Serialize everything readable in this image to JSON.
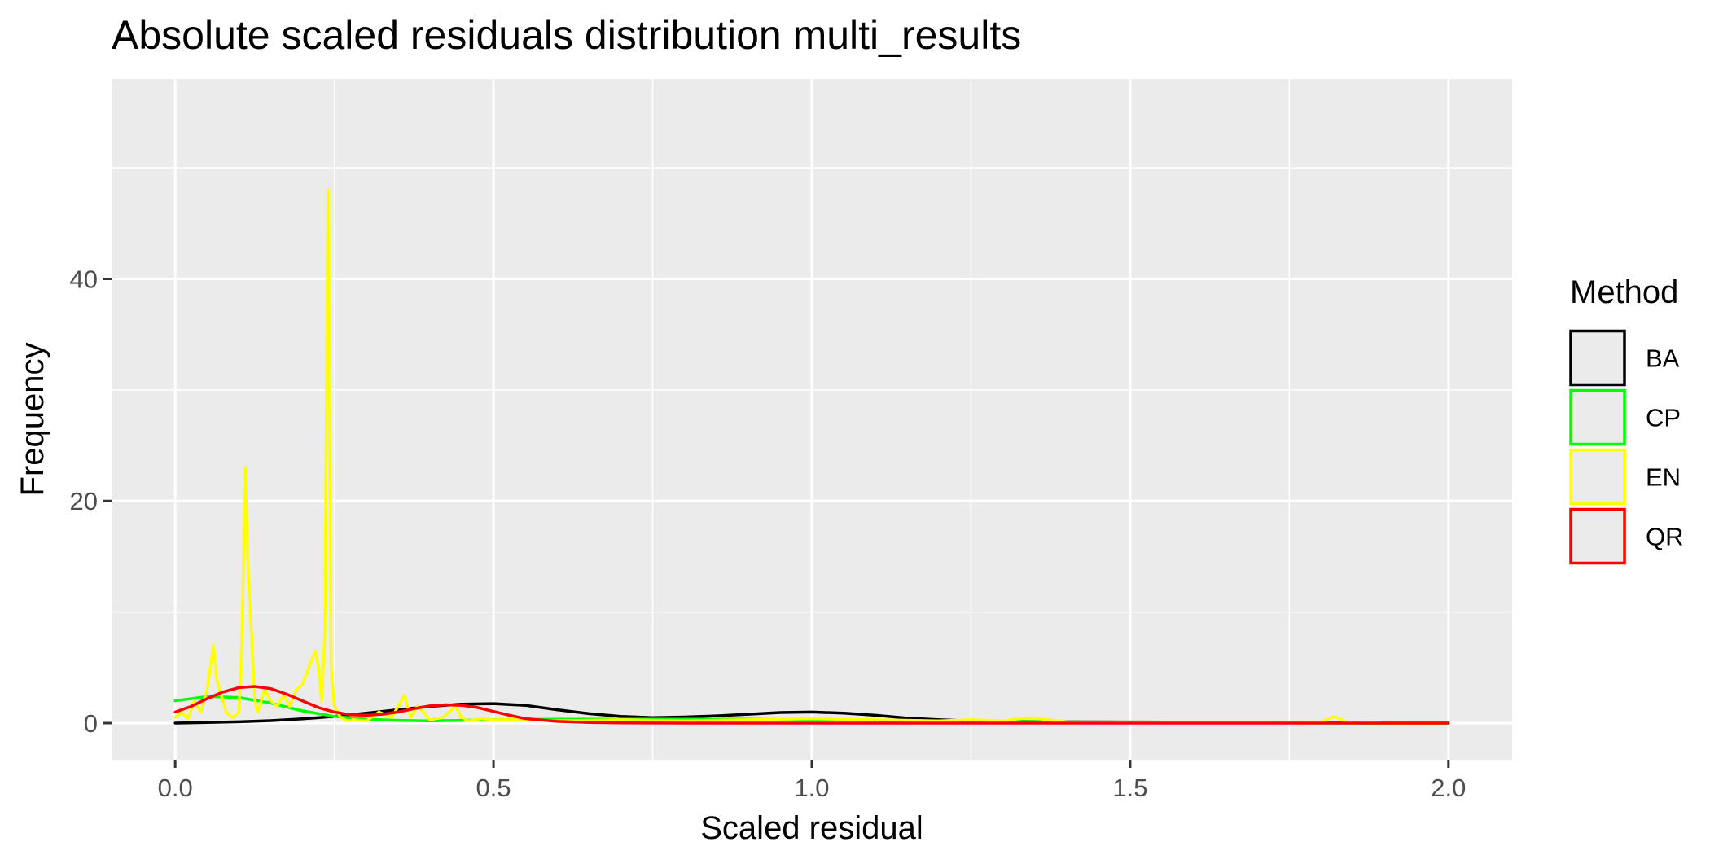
{
  "chart_data": {
    "type": "line",
    "title": "Absolute scaled residuals distribution multi_results",
    "xlabel": "Scaled residual",
    "ylabel": "Frequency",
    "xlim": [
      -0.1,
      2.1
    ],
    "ylim": [
      -3.3,
      58
    ],
    "x_ticks": [
      0.0,
      0.5,
      1.0,
      1.5,
      2.0
    ],
    "x_tick_labels": [
      "0.0",
      "0.5",
      "1.0",
      "1.5",
      "2.0"
    ],
    "y_ticks": [
      0,
      20,
      40
    ],
    "y_tick_labels": [
      "0",
      "20",
      "40"
    ],
    "panel_background": "#ebebeb",
    "grid": true,
    "legend": {
      "title": "Method",
      "position": "right"
    },
    "series": [
      {
        "name": "BA",
        "color": "#000000",
        "x": [
          0.0,
          0.05,
          0.1,
          0.15,
          0.2,
          0.25,
          0.3,
          0.35,
          0.4,
          0.45,
          0.5,
          0.55,
          0.6,
          0.65,
          0.7,
          0.75,
          0.8,
          0.85,
          0.9,
          0.95,
          1.0,
          1.05,
          1.1,
          1.15,
          1.2,
          1.25,
          1.3,
          1.4,
          1.5,
          1.6,
          1.7,
          1.8,
          1.9,
          2.0
        ],
        "y": [
          0.0,
          0.05,
          0.12,
          0.22,
          0.38,
          0.6,
          0.9,
          1.2,
          1.5,
          1.7,
          1.75,
          1.6,
          1.2,
          0.85,
          0.6,
          0.5,
          0.55,
          0.65,
          0.8,
          0.95,
          1.0,
          0.9,
          0.7,
          0.45,
          0.3,
          0.2,
          0.15,
          0.12,
          0.1,
          0.08,
          0.05,
          0.03,
          0.01,
          0.0
        ]
      },
      {
        "name": "CP",
        "color": "#00ff00",
        "x": [
          0.0,
          0.05,
          0.1,
          0.15,
          0.2,
          0.25,
          0.3,
          0.35,
          0.4,
          0.45,
          0.5,
          0.6,
          0.7,
          0.8,
          0.9,
          1.0,
          1.1,
          1.2,
          1.3,
          1.4,
          1.5,
          1.6,
          1.7,
          1.8,
          1.9,
          2.0
        ],
        "y": [
          2.0,
          2.4,
          2.3,
          1.8,
          1.1,
          0.6,
          0.35,
          0.25,
          0.2,
          0.25,
          0.3,
          0.35,
          0.35,
          0.35,
          0.35,
          0.3,
          0.25,
          0.2,
          0.15,
          0.1,
          0.05,
          0.03,
          0.02,
          0.01,
          0.0,
          0.0
        ]
      },
      {
        "name": "EN",
        "color": "#ffff00",
        "x": [
          0.0,
          0.01,
          0.02,
          0.03,
          0.04,
          0.05,
          0.06,
          0.065,
          0.07,
          0.08,
          0.09,
          0.1,
          0.105,
          0.11,
          0.115,
          0.12,
          0.125,
          0.13,
          0.14,
          0.15,
          0.16,
          0.17,
          0.18,
          0.19,
          0.2,
          0.21,
          0.22,
          0.225,
          0.23,
          0.235,
          0.24,
          0.245,
          0.25,
          0.26,
          0.27,
          0.28,
          0.3,
          0.32,
          0.34,
          0.36,
          0.37,
          0.38,
          0.39,
          0.4,
          0.42,
          0.44,
          0.45,
          0.46,
          0.48,
          0.5,
          0.55,
          0.6,
          0.7,
          0.8,
          0.9,
          1.0,
          1.1,
          1.2,
          1.25,
          1.3,
          1.34,
          1.4,
          1.5,
          1.6,
          1.7,
          1.8,
          1.82,
          1.84,
          1.9,
          2.0
        ],
        "y": [
          0.5,
          1.0,
          0.4,
          2.0,
          1.0,
          3.0,
          7.0,
          4.0,
          3.0,
          1.0,
          0.5,
          1.0,
          8.0,
          23.0,
          13.0,
          8.0,
          2.0,
          1.0,
          3.0,
          2.0,
          1.5,
          2.5,
          1.5,
          3.0,
          3.5,
          5.0,
          6.5,
          5.0,
          2.0,
          8.0,
          48.0,
          5.0,
          1.5,
          0.5,
          0.2,
          0.3,
          0.2,
          1.0,
          0.5,
          2.5,
          0.5,
          1.5,
          1.0,
          0.3,
          0.5,
          1.5,
          0.5,
          0.2,
          0.4,
          0.3,
          0.3,
          0.2,
          0.3,
          0.2,
          0.3,
          0.4,
          0.3,
          0.2,
          0.3,
          0.2,
          0.5,
          0.1,
          0.1,
          0.1,
          0.1,
          0.1,
          0.6,
          0.1,
          0.0,
          0.0
        ]
      },
      {
        "name": "QR",
        "color": "#ff0000",
        "x": [
          0.0,
          0.025,
          0.05,
          0.075,
          0.1,
          0.125,
          0.15,
          0.175,
          0.2,
          0.225,
          0.25,
          0.275,
          0.3,
          0.325,
          0.35,
          0.375,
          0.4,
          0.425,
          0.45,
          0.475,
          0.5,
          0.525,
          0.55,
          0.6,
          0.65,
          0.7,
          0.8,
          0.9,
          1.0,
          1.2,
          1.4,
          1.6,
          1.8,
          2.0
        ],
        "y": [
          1.0,
          1.5,
          2.2,
          2.8,
          3.2,
          3.3,
          3.1,
          2.6,
          2.0,
          1.4,
          1.0,
          0.75,
          0.7,
          0.8,
          1.0,
          1.3,
          1.55,
          1.65,
          1.6,
          1.4,
          1.05,
          0.7,
          0.4,
          0.15,
          0.05,
          0.02,
          0.0,
          0.0,
          0.0,
          0.0,
          0.0,
          0.0,
          0.0,
          0.0
        ]
      }
    ]
  }
}
